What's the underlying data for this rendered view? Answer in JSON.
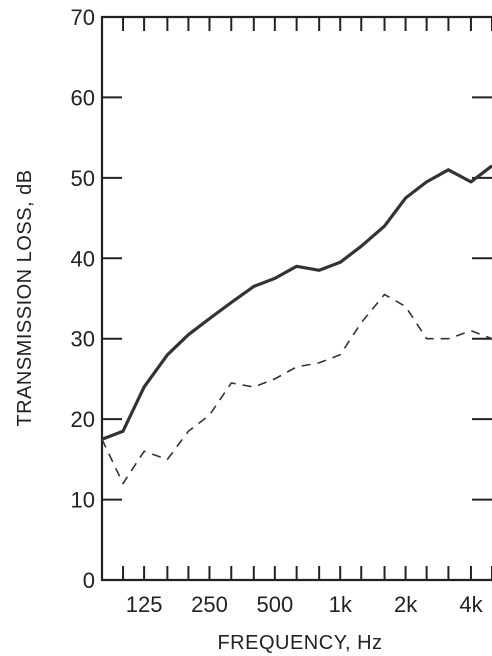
{
  "chart_data": {
    "type": "line",
    "xlabel": "FREQUENCY, Hz",
    "ylabel": "TRANSMISSION LOSS, dB",
    "x_scale": "log",
    "x_tick_labels": [
      "125",
      "250",
      "500",
      "1k",
      "2k",
      "4k"
    ],
    "x_tick_values": [
      125,
      250,
      500,
      1000,
      2000,
      4000
    ],
    "x_minor_ticks": [
      100,
      125,
      160,
      200,
      250,
      315,
      400,
      500,
      630,
      800,
      1000,
      1250,
      1600,
      2000,
      2500,
      3150,
      4000,
      5000
    ],
    "xlim": [
      80,
      5000
    ],
    "ylim": [
      0,
      70
    ],
    "y_ticks": [
      0,
      10,
      20,
      30,
      40,
      50,
      60,
      70
    ],
    "grid": false,
    "series": [
      {
        "style": "solid",
        "color": "#333333",
        "x": [
          80,
          100,
          125,
          160,
          200,
          250,
          315,
          400,
          500,
          630,
          800,
          1000,
          1250,
          1600,
          2000,
          2500,
          3150,
          4000,
          5000
        ],
        "values": [
          17.5,
          18.5,
          24,
          28,
          30.5,
          32.5,
          34.5,
          36.5,
          37.5,
          39,
          38.5,
          39.5,
          41.5,
          44,
          47.5,
          49.5,
          51,
          49.5,
          51.5
        ]
      },
      {
        "style": "dashed",
        "color": "#333333",
        "x": [
          80,
          100,
          125,
          160,
          200,
          250,
          315,
          400,
          500,
          630,
          800,
          1000,
          1250,
          1600,
          2000,
          2500,
          3150,
          4000,
          5000
        ],
        "values": [
          17.5,
          12,
          16,
          15,
          18.5,
          20.5,
          24.5,
          24,
          25,
          26.5,
          27,
          28,
          32,
          35.5,
          34,
          30,
          30,
          31,
          30
        ]
      }
    ]
  }
}
